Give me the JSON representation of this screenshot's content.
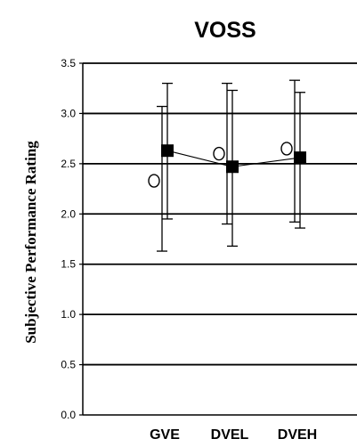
{
  "chart_data": {
    "type": "scatter",
    "title": "VOSS",
    "ylabel": "Subjective Performance Rating",
    "xlabel": "",
    "categories": [
      "GVE",
      "DVEL",
      "DVEH"
    ],
    "ylim": [
      0.0,
      3.5
    ],
    "yticks": [
      "0.0",
      "0.5",
      "1.0",
      "1.5",
      "2.0",
      "2.5",
      "3.0",
      "3.5"
    ],
    "grid": "horizontal",
    "legend": "none",
    "series": [
      {
        "marker": "circle-open",
        "values": [
          2.33,
          2.6,
          2.65
        ],
        "error_low": [
          1.63,
          1.9,
          1.92
        ],
        "error_high": [
          3.07,
          3.3,
          3.33
        ]
      },
      {
        "marker": "square-filled",
        "values": [
          2.63,
          2.47,
          2.56
        ],
        "error_low": [
          1.95,
          1.68,
          1.86
        ],
        "error_high": [
          3.3,
          3.23,
          3.21
        ]
      }
    ],
    "colors": {
      "line": "#000000",
      "marker": "#000000",
      "background": "#ffffff"
    }
  }
}
